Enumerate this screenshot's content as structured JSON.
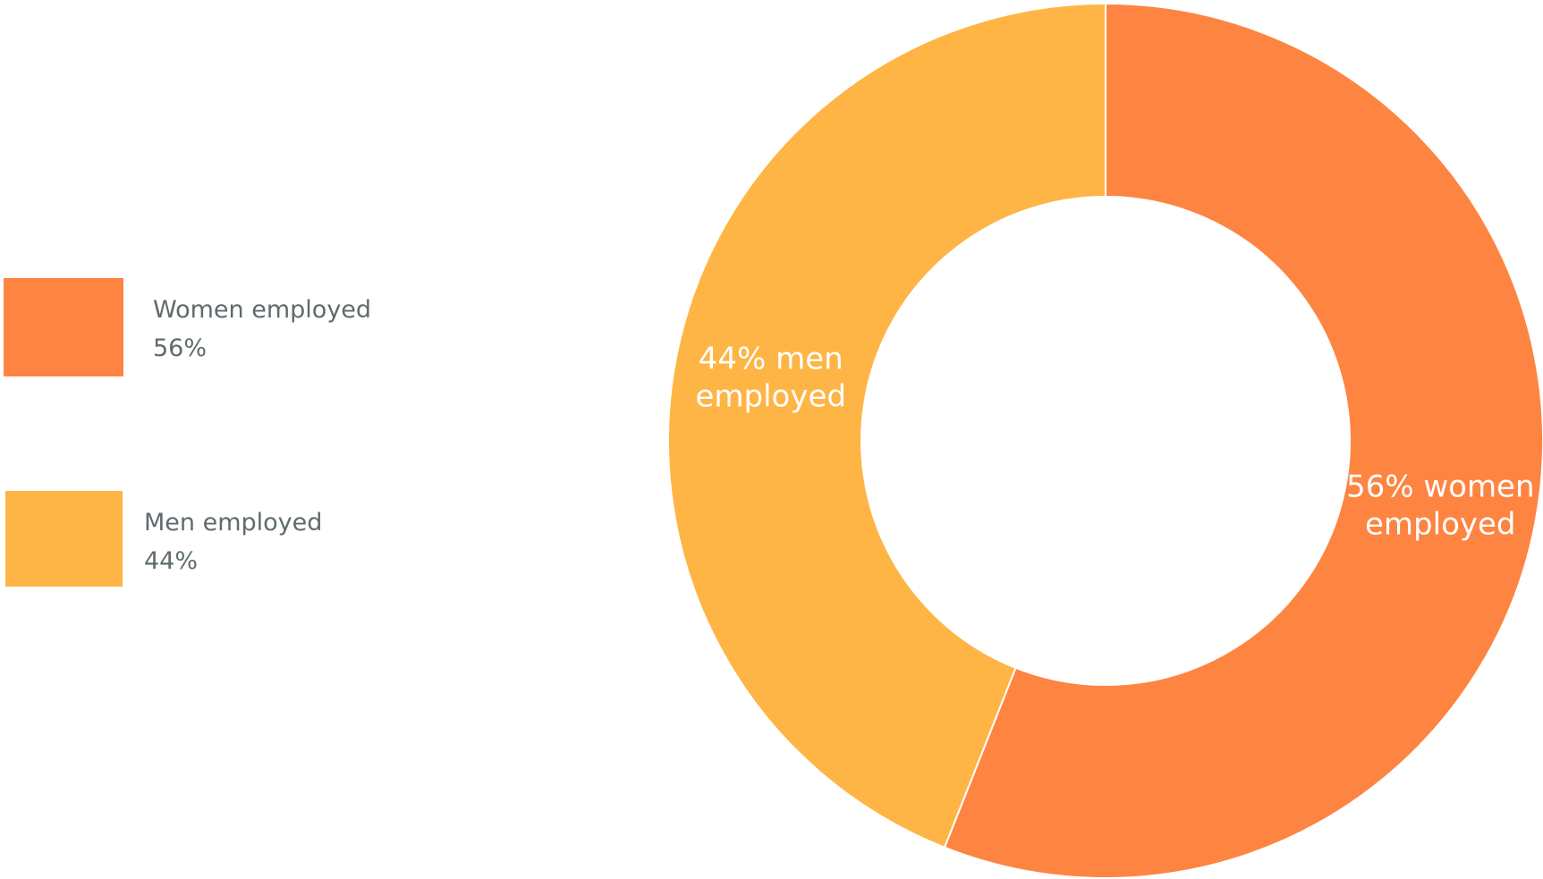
{
  "chart_data": {
    "type": "pie",
    "variant": "donut",
    "categories": [
      "Women employed",
      "Men employed"
    ],
    "values": [
      56,
      44
    ],
    "units": "%",
    "colors": [
      "#fe8442",
      "#feb545"
    ],
    "slice_labels": [
      [
        "56% women",
        "employed"
      ],
      [
        "44% men",
        "employed"
      ]
    ],
    "start_angle": "12 o'clock",
    "direction": "clockwise",
    "legend_position": "left",
    "legend": [
      {
        "name": "Women employed",
        "value_text": "56%",
        "color": "#fe8442"
      },
      {
        "name": "Men employed",
        "value_text": "44%",
        "color": "#feb545"
      }
    ]
  }
}
